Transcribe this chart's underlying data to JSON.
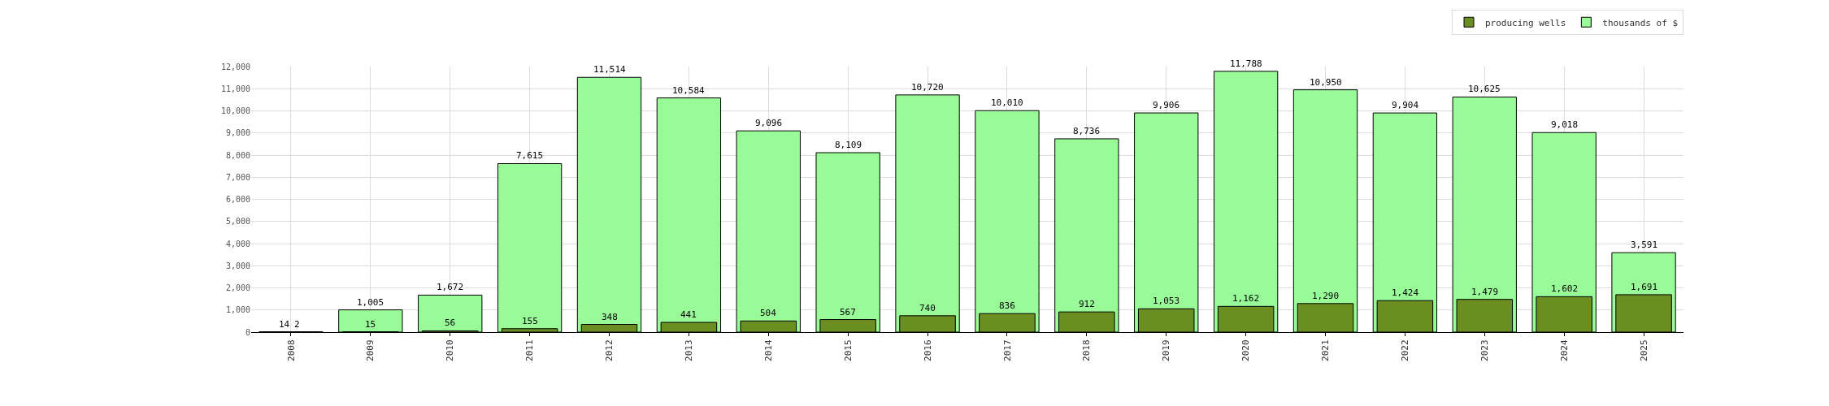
{
  "chart_data": {
    "type": "bar",
    "categories": [
      "2008",
      "2009",
      "2010",
      "2011",
      "2012",
      "2013",
      "2014",
      "2015",
      "2016",
      "2017",
      "2018",
      "2019",
      "2020",
      "2021",
      "2022",
      "2023",
      "2024",
      "2025"
    ],
    "series": [
      {
        "name": "thousands of $",
        "color": "#98fb98",
        "values": [
          14,
          1005,
          1672,
          7615,
          11514,
          10584,
          9096,
          8109,
          10720,
          10010,
          8736,
          9906,
          11788,
          10950,
          9904,
          10625,
          9018,
          3591
        ],
        "value_labels": [
          "14",
          "1,005",
          "1,672",
          "7,615",
          "11,514",
          "10,584",
          "9,096",
          "8,109",
          "10,720",
          "10,010",
          "8,736",
          "9,906",
          "11,788",
          "10,950",
          "9,904",
          "10,625",
          "9,018",
          "3,591"
        ]
      },
      {
        "name": "producing wells",
        "color": "#6b8e23",
        "values": [
          2,
          15,
          56,
          155,
          348,
          441,
          504,
          567,
          740,
          836,
          912,
          1053,
          1162,
          1290,
          1424,
          1479,
          1602,
          1691
        ],
        "value_labels": [
          "2",
          "15",
          "56",
          "155",
          "348",
          "441",
          "504",
          "567",
          "740",
          "836",
          "912",
          "1,053",
          "1,162",
          "1,290",
          "1,424",
          "1,479",
          "1,602",
          "1,691"
        ]
      }
    ],
    "ylim": [
      0,
      12000
    ],
    "yticks": [
      {
        "value": 0,
        "label": "0"
      },
      {
        "value": 1000,
        "label": "1,000"
      },
      {
        "value": 2000,
        "label": "2,000"
      },
      {
        "value": 3000,
        "label": "3,000"
      },
      {
        "value": 4000,
        "label": "4,000"
      },
      {
        "value": 5000,
        "label": "5,000"
      },
      {
        "value": 6000,
        "label": "6,000"
      },
      {
        "value": 7000,
        "label": "7,000"
      },
      {
        "value": 8000,
        "label": "8,000"
      },
      {
        "value": 9000,
        "label": "9,000"
      },
      {
        "value": 10000,
        "label": "10,000"
      },
      {
        "value": 11000,
        "label": "11,000"
      },
      {
        "value": 12000,
        "label": "12,000"
      }
    ],
    "grid": true,
    "legend": "top right"
  }
}
